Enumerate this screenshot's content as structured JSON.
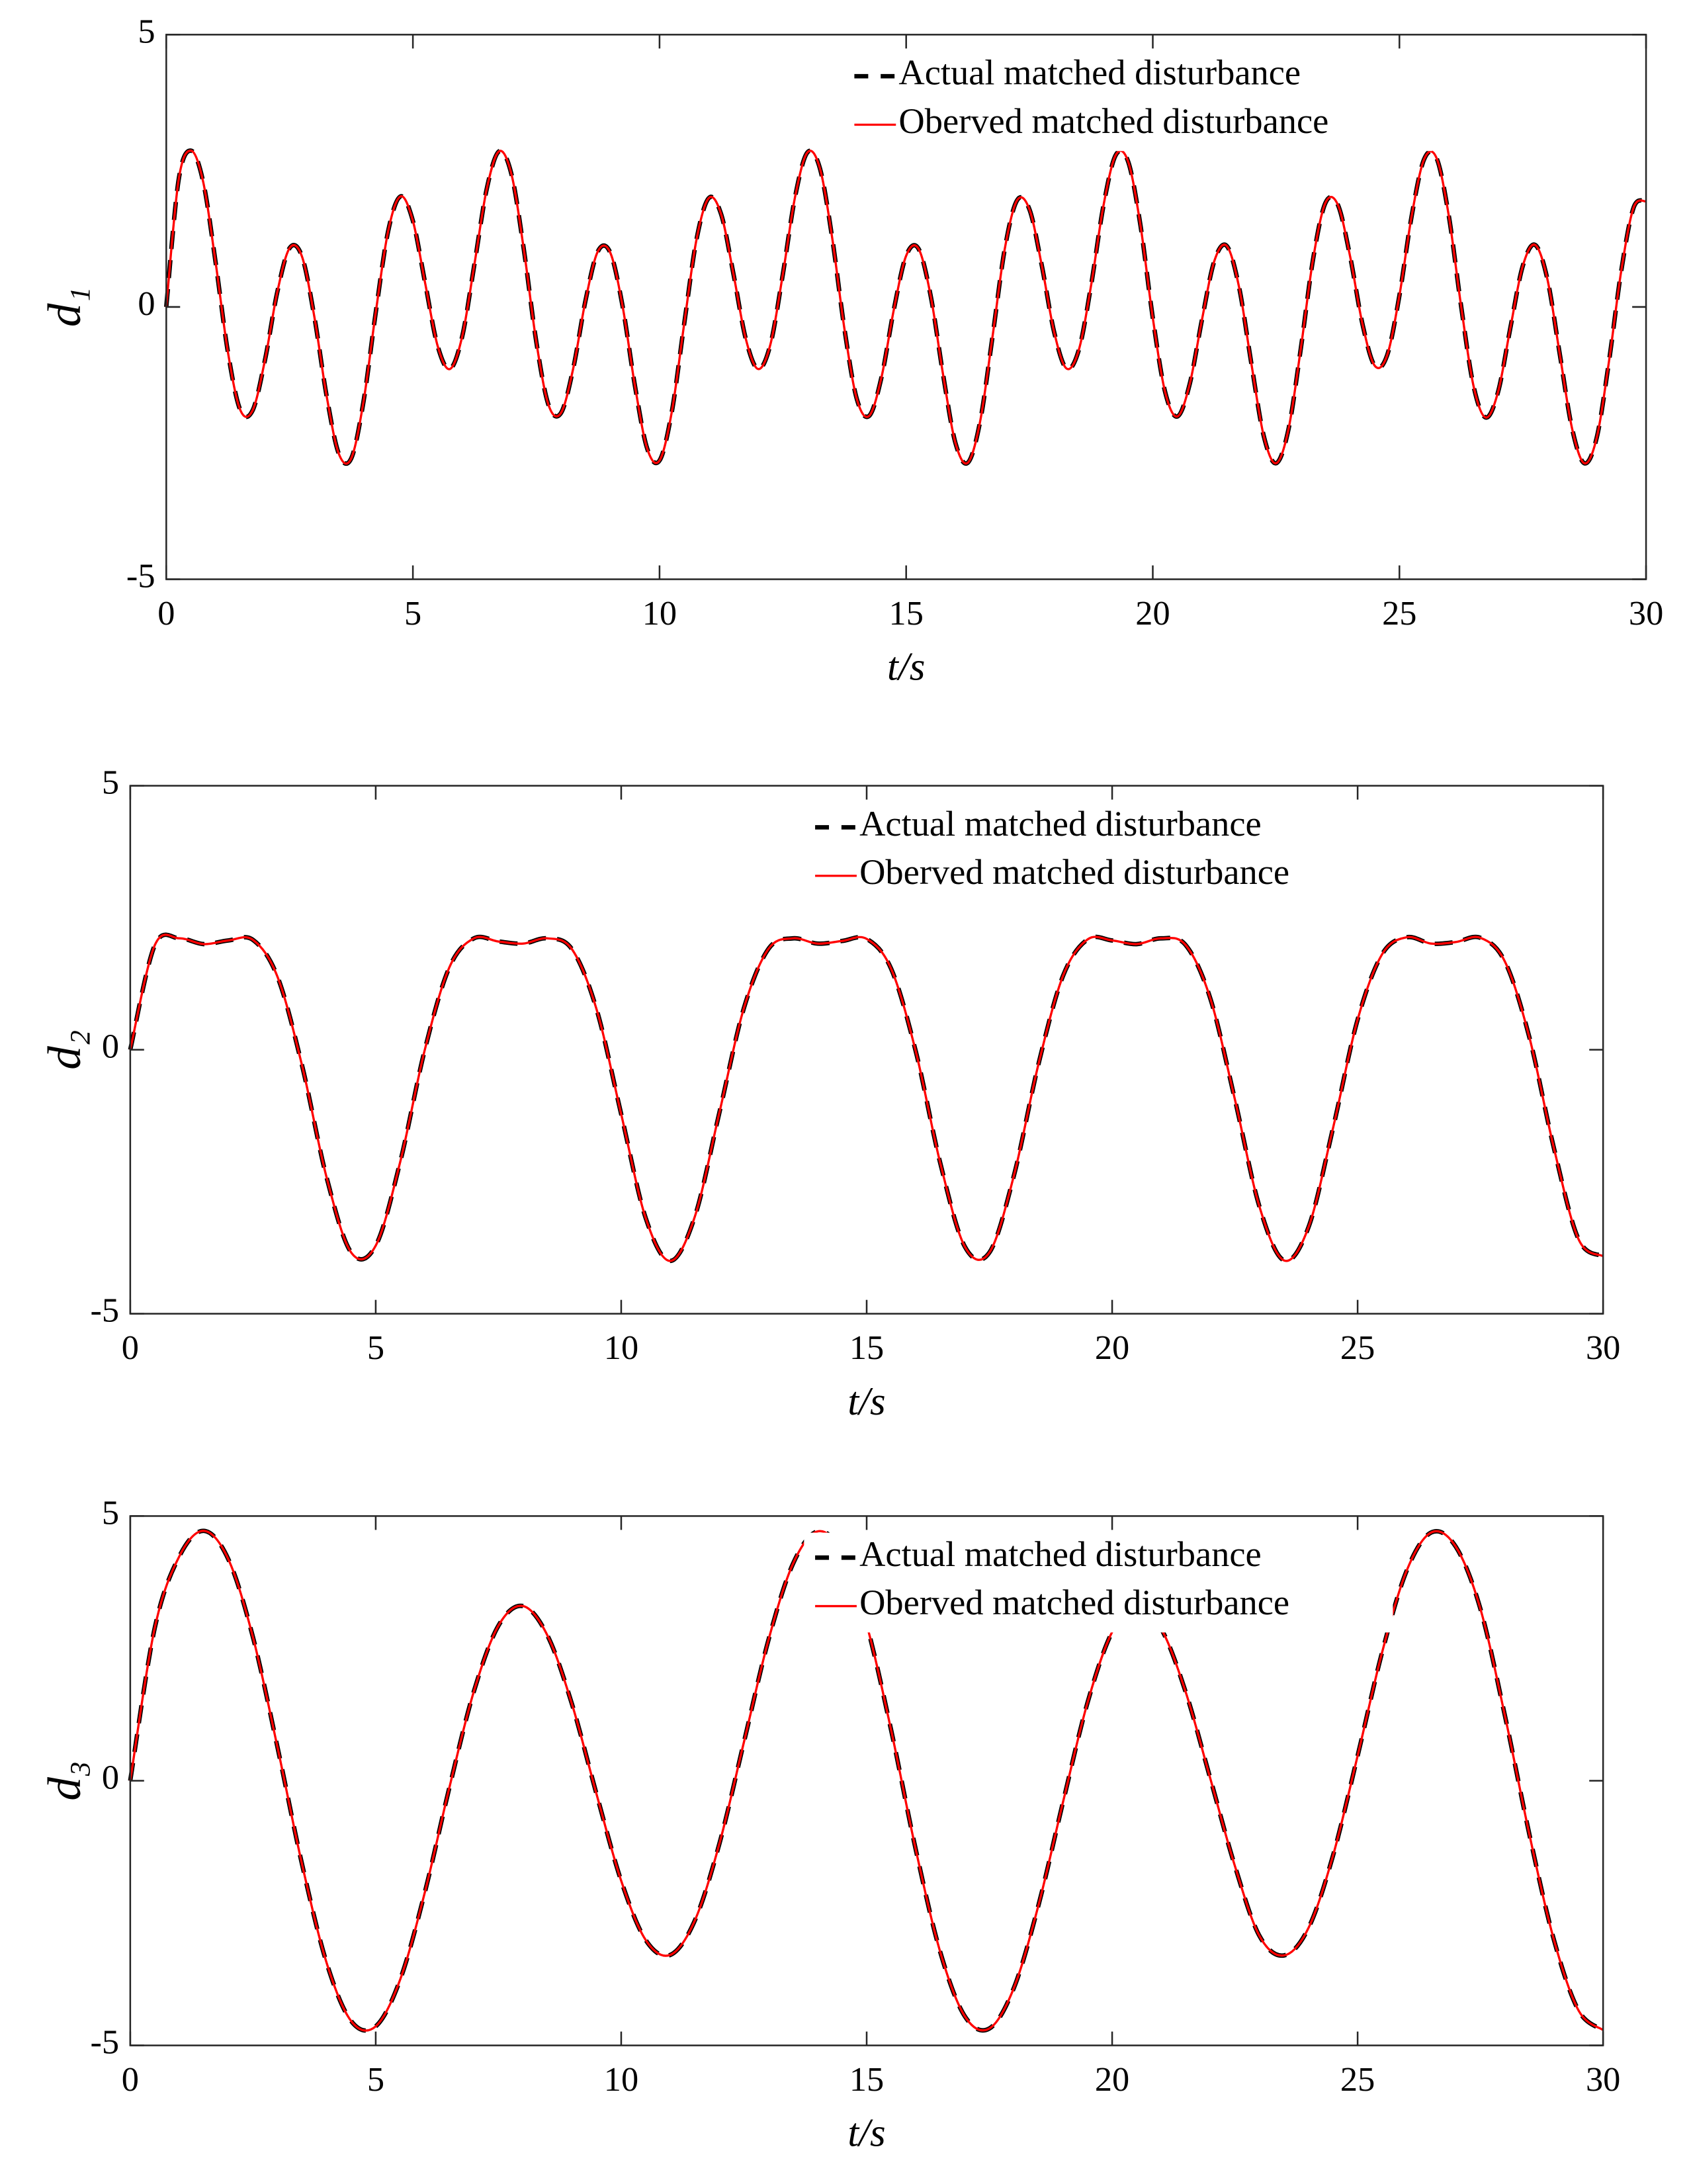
{
  "chart_data": [
    {
      "type": "line",
      "xlabel": "t/s",
      "ylabel": "d₁",
      "xlim": [
        0,
        30
      ],
      "ylim": [
        -5,
        5
      ],
      "xticks": [
        0,
        5,
        10,
        15,
        20,
        25,
        30
      ],
      "yticks": [
        -5,
        0,
        5
      ],
      "legend": "top",
      "x": [
        0,
        0.25,
        0.5,
        0.75,
        1,
        1.25,
        1.5,
        1.75,
        2,
        2.25,
        2.5,
        2.75,
        3,
        3.25,
        3.5,
        3.75,
        4,
        4.25,
        4.5,
        4.75,
        5,
        5.25,
        5.5,
        5.75,
        6,
        6.25,
        6.5,
        6.75,
        7,
        7.25,
        7.5,
        7.75,
        8,
        8.25,
        8.5,
        8.75,
        9,
        9.25,
        9.5,
        9.75,
        10,
        10.25,
        10.5,
        10.75,
        11,
        11.25,
        11.5,
        11.75,
        12,
        12.25,
        12.5,
        12.75,
        13,
        13.25,
        13.5,
        13.75,
        14,
        14.25,
        14.5,
        14.75,
        15,
        15.25,
        15.5,
        15.75,
        16,
        16.25,
        16.5,
        16.75,
        17,
        17.25,
        17.5,
        17.75,
        18,
        18.25,
        18.5,
        18.75,
        19,
        19.25,
        19.5,
        19.75,
        20,
        20.25,
        20.5,
        20.75,
        21,
        21.25,
        21.5,
        21.75,
        22,
        22.25,
        22.5,
        22.75,
        23,
        23.25,
        23.5,
        23.75,
        24,
        24.25,
        24.5,
        24.75,
        25,
        25.25,
        25.5,
        25.75,
        26,
        26.25,
        26.5,
        26.75,
        27,
        27.25,
        27.5,
        27.75,
        28,
        28.25,
        28.5,
        28.75,
        29,
        29.25,
        29.5,
        29.75,
        30
      ],
      "series": [
        {
          "name": "Actual matched disturbance",
          "color": "#000000",
          "linestyle": "dashed",
          "values": [
            0,
            2.33,
            2.87,
            2.29,
            0.82,
            -0.83,
            -1.89,
            -1.9,
            -0.98,
            0.27,
            1.08,
            0.93,
            -0.17,
            -1.63,
            -2.7,
            -2.78,
            -1.73,
            -0.08,
            1.4,
            2.03,
            1.58,
            0.43,
            -0.71,
            -1.14,
            -0.54,
            0.8,
            2.18,
            2.86,
            2.43,
            1.05,
            -0.63,
            -1.8,
            -1.95,
            -1.13,
            0.12,
            1.02,
            1.0,
            0.02,
            -1.44,
            -2.6,
            -2.82,
            -1.92,
            -0.31,
            1.24,
            2.0,
            1.7,
            0.6,
            -0.59,
            -1.14,
            -0.68,
            0.6,
            2.03,
            2.84,
            2.55,
            1.27,
            -0.41,
            -1.69,
            -2.0,
            -1.29,
            -0.05,
            0.94,
            1.07,
            0.19,
            -1.25,
            -2.5,
            -2.86,
            -2.1,
            -0.55,
            1.07,
            1.96,
            1.79,
            0.76,
            -0.46,
            -1.13,
            -0.79,
            0.4,
            1.86,
            2.79,
            2.67,
            1.5,
            -0.2,
            -1.56,
            -2.01,
            -1.41,
            -0.22,
            0.85,
            1.12,
            0.36,
            -1.05,
            -2.37,
            -2.87,
            -2.25,
            -0.77,
            0.88,
            1.91,
            1.88,
            0.93,
            -0.31,
            -1.08,
            -0.89,
            0.21,
            1.68,
            2.71,
            2.74,
            1.68,
            0.02,
            -1.44,
            -2.03,
            -1.56,
            -0.38,
            0.75,
            1.14,
            0.51,
            -0.86,
            -2.23,
            -2.87,
            -2.4,
            -0.99,
            0.68,
            1.83,
            1.94
          ]
        },
        {
          "name": "Oberved matched disturbance",
          "color": "#ff0000",
          "linestyle": "solid",
          "values": [
            0,
            2.33,
            2.87,
            2.29,
            0.82,
            -0.83,
            -1.89,
            -1.9,
            -0.98,
            0.27,
            1.08,
            0.93,
            -0.17,
            -1.63,
            -2.7,
            -2.78,
            -1.73,
            -0.08,
            1.4,
            2.03,
            1.58,
            0.43,
            -0.71,
            -1.14,
            -0.54,
            0.8,
            2.18,
            2.86,
            2.43,
            1.05,
            -0.63,
            -1.8,
            -1.95,
            -1.13,
            0.12,
            1.02,
            1.0,
            0.02,
            -1.44,
            -2.6,
            -2.82,
            -1.92,
            -0.31,
            1.24,
            2.0,
            1.7,
            0.6,
            -0.59,
            -1.14,
            -0.68,
            0.6,
            2.03,
            2.84,
            2.55,
            1.27,
            -0.41,
            -1.69,
            -2.0,
            -1.29,
            -0.05,
            0.94,
            1.07,
            0.19,
            -1.25,
            -2.5,
            -2.86,
            -2.1,
            -0.55,
            1.07,
            1.96,
            1.79,
            0.76,
            -0.46,
            -1.13,
            -0.79,
            0.4,
            1.86,
            2.79,
            2.67,
            1.5,
            -0.2,
            -1.56,
            -2.01,
            -1.41,
            -0.22,
            0.85,
            1.12,
            0.36,
            -1.05,
            -2.37,
            -2.87,
            -2.25,
            -0.77,
            0.88,
            1.91,
            1.88,
            0.93,
            -0.31,
            -1.08,
            -0.89,
            0.21,
            1.68,
            2.71,
            2.74,
            1.68,
            0.02,
            -1.44,
            -2.03,
            -1.56,
            -0.38,
            0.75,
            1.14,
            0.51,
            -0.86,
            -2.23,
            -2.87,
            -2.4,
            -0.99,
            0.68,
            1.83,
            1.94
          ]
        }
      ]
    },
    {
      "type": "line",
      "xlabel": "t/s",
      "ylabel": "d₂",
      "xlim": [
        0,
        30
      ],
      "ylim": [
        -5,
        5
      ],
      "xticks": [
        0,
        5,
        10,
        15,
        20,
        25,
        30
      ],
      "yticks": [
        -5,
        0,
        5
      ],
      "legend": "top",
      "x": [
        0,
        0.5,
        1,
        1.5,
        2,
        2.5,
        3,
        3.5,
        4,
        4.5,
        5,
        5.5,
        6,
        6.5,
        7,
        7.5,
        8,
        8.5,
        9,
        9.5,
        10,
        10.5,
        11,
        11.5,
        12,
        12.5,
        13,
        13.5,
        14,
        14.5,
        15,
        15.5,
        16,
        16.5,
        17,
        17.5,
        18,
        18.5,
        19,
        19.5,
        20,
        20.5,
        21,
        21.5,
        22,
        22.5,
        23,
        23.5,
        24,
        24.5,
        25,
        25.5,
        26,
        26.5,
        27,
        27.5,
        28,
        28.5,
        29,
        29.5,
        30
      ],
      "series": [
        {
          "name": "Actual matched disturbance",
          "color": "#000000",
          "linestyle": "dashed",
          "values": [
            0,
            1.98,
            2.11,
            2.0,
            2.07,
            2.08,
            1.38,
            -0.3,
            -2.42,
            -3.84,
            -3.71,
            -2.12,
            0.0,
            1.56,
            2.11,
            2.05,
            2.01,
            2.11,
            1.9,
            0.76,
            -1.22,
            -3.19,
            -4.0,
            -3.16,
            -1.19,
            0.79,
            1.91,
            2.11,
            2.01,
            2.06,
            2.1,
            1.53,
            -0.03,
            -2.15,
            -3.73,
            -3.84,
            -2.38,
            -0.27,
            1.4,
            2.09,
            2.07,
            2.0,
            2.11,
            1.98,
            0.97,
            -0.94,
            -2.97,
            -3.99,
            -3.36,
            -1.48,
            0.57,
            1.81,
            2.13,
            2.01,
            2.04,
            2.12,
            1.67,
            0.23,
            -1.87,
            -3.59,
            -3.91
          ]
        },
        {
          "name": "Oberved matched disturbance",
          "color": "#ff0000",
          "linestyle": "solid",
          "values": [
            0,
            1.98,
            2.11,
            2.0,
            2.07,
            2.08,
            1.38,
            -0.3,
            -2.42,
            -3.84,
            -3.71,
            -2.12,
            0.0,
            1.56,
            2.11,
            2.05,
            2.01,
            2.11,
            1.9,
            0.76,
            -1.22,
            -3.19,
            -4.0,
            -3.16,
            -1.19,
            0.79,
            1.91,
            2.11,
            2.01,
            2.06,
            2.1,
            1.53,
            -0.03,
            -2.15,
            -3.73,
            -3.84,
            -2.38,
            -0.27,
            1.4,
            2.09,
            2.07,
            2.0,
            2.11,
            1.98,
            0.97,
            -0.94,
            -2.97,
            -3.99,
            -3.36,
            -1.48,
            0.57,
            1.81,
            2.13,
            2.01,
            2.04,
            2.12,
            1.67,
            0.23,
            -1.87,
            -3.59,
            -3.91
          ]
        }
      ]
    },
    {
      "type": "line",
      "xlabel": "t/s",
      "ylabel": "d₃",
      "xlim": [
        0,
        30
      ],
      "ylim": [
        -5,
        5
      ],
      "xticks": [
        0,
        5,
        10,
        15,
        20,
        25,
        30
      ],
      "yticks": [
        -5,
        0,
        5
      ],
      "legend": "top",
      "x": [
        0,
        0.5,
        1,
        1.5,
        2,
        2.5,
        3,
        3.5,
        4,
        4.5,
        5,
        5.5,
        6,
        6.5,
        7,
        7.5,
        8,
        8.5,
        9,
        9.5,
        10,
        10.5,
        11,
        11.5,
        12,
        12.5,
        13,
        13.5,
        14,
        14.5,
        15,
        15.5,
        16,
        16.5,
        17,
        17.5,
        18,
        18.5,
        19,
        19.5,
        20,
        20.5,
        21,
        21.5,
        22,
        22.5,
        23,
        23.5,
        24,
        24.5,
        25,
        25.5,
        26,
        26.5,
        27,
        27.5,
        28,
        28.5,
        29,
        29.5,
        30
      ],
      "series": [
        {
          "name": "Actual matched disturbance",
          "color": "#000000",
          "linestyle": "dashed",
          "values": [
            0,
            2.89,
            4.24,
            4.72,
            4.18,
            2.71,
            0.63,
            -1.58,
            -3.44,
            -4.54,
            -4.64,
            -3.75,
            -2.11,
            -0.13,
            1.69,
            2.93,
            3.3,
            2.74,
            1.44,
            -0.26,
            -1.89,
            -3.01,
            -3.29,
            -2.64,
            -1.19,
            0.73,
            2.66,
            4.1,
            4.71,
            4.31,
            2.95,
            0.95,
            -1.3,
            -3.24,
            -4.45,
            -4.68,
            -3.91,
            -2.35,
            -0.4,
            1.48,
            2.81,
            3.31,
            2.87,
            1.67,
            0.04,
            -1.61,
            -2.93,
            -3.3,
            -2.78,
            -1.41,
            0.47,
            2.43,
            3.97,
            4.69,
            4.42,
            3.25,
            1.23,
            -1.02,
            -3.01,
            -4.34,
            -4.71
          ]
        },
        {
          "name": "Oberved matched disturbance",
          "color": "#ff0000",
          "linestyle": "solid",
          "values": [
            0,
            2.89,
            4.24,
            4.72,
            4.18,
            2.71,
            0.63,
            -1.58,
            -3.44,
            -4.54,
            -4.64,
            -3.75,
            -2.11,
            -0.13,
            1.69,
            2.93,
            3.3,
            2.74,
            1.44,
            -0.26,
            -1.89,
            -3.01,
            -3.29,
            -2.64,
            -1.19,
            0.73,
            2.66,
            4.1,
            4.71,
            4.31,
            2.95,
            0.95,
            -1.3,
            -3.24,
            -4.45,
            -4.68,
            -3.91,
            -2.35,
            -0.4,
            1.48,
            2.81,
            3.31,
            2.87,
            1.67,
            0.04,
            -1.61,
            -2.93,
            -3.3,
            -2.78,
            -1.41,
            0.47,
            2.43,
            3.97,
            4.69,
            4.42,
            3.25,
            1.23,
            -1.02,
            -3.01,
            -4.34,
            -4.71
          ]
        }
      ]
    }
  ]
}
